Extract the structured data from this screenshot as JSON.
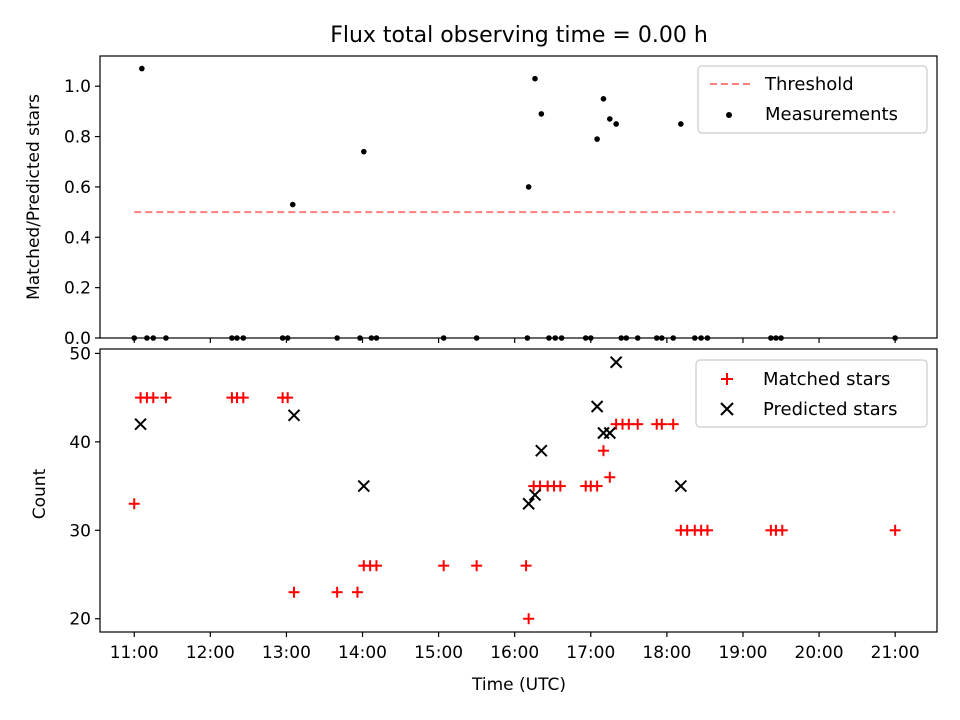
{
  "chart_data": [
    {
      "type": "scatter",
      "title": "Flux total observing time = 0.00 h",
      "ylabel": "Matched/Predicted stars",
      "xlim": [
        "10:33",
        "21:33"
      ],
      "ylim": [
        0,
        1.12
      ],
      "y_ticks": [
        "0.0",
        "0.2",
        "0.4",
        "0.6",
        "0.8",
        "1.0"
      ],
      "y_tick_values": [
        0,
        0.2,
        0.4,
        0.6,
        0.8,
        1.0
      ],
      "legend": {
        "placement": "top-right",
        "entries": [
          "Threshold",
          "Measurements"
        ]
      },
      "threshold": {
        "name": "Threshold",
        "value": 0.5,
        "x_range": [
          "11:00",
          "21:00"
        ],
        "color": "#ff7f7f"
      },
      "series": [
        {
          "name": "Measurements",
          "color": "#000000",
          "points": [
            {
              "x": "11:00",
              "y": 0
            },
            {
              "x": "11:06",
              "y": 1.07
            },
            {
              "x": "11:10",
              "y": 0
            },
            {
              "x": "11:15",
              "y": 0
            },
            {
              "x": "11:25",
              "y": 0
            },
            {
              "x": "12:17",
              "y": 0
            },
            {
              "x": "12:21",
              "y": 0
            },
            {
              "x": "12:26",
              "y": 0
            },
            {
              "x": "12:57",
              "y": 0
            },
            {
              "x": "13:01",
              "y": 0
            },
            {
              "x": "13:05",
              "y": 0.53
            },
            {
              "x": "13:40",
              "y": 0
            },
            {
              "x": "13:58",
              "y": 0
            },
            {
              "x": "14:01",
              "y": 0.74
            },
            {
              "x": "14:07",
              "y": 0
            },
            {
              "x": "14:11",
              "y": 0
            },
            {
              "x": "15:04",
              "y": 0
            },
            {
              "x": "15:30",
              "y": 0
            },
            {
              "x": "16:10",
              "y": 0
            },
            {
              "x": "16:11",
              "y": 0.6
            },
            {
              "x": "16:16",
              "y": 1.03
            },
            {
              "x": "16:21",
              "y": 0.89
            },
            {
              "x": "16:27",
              "y": 0
            },
            {
              "x": "16:32",
              "y": 0
            },
            {
              "x": "16:37",
              "y": 0
            },
            {
              "x": "16:56",
              "y": 0
            },
            {
              "x": "17:00",
              "y": 0
            },
            {
              "x": "17:05",
              "y": 0.79
            },
            {
              "x": "17:10",
              "y": 0.95
            },
            {
              "x": "17:15",
              "y": 0.87
            },
            {
              "x": "17:20",
              "y": 0.85
            },
            {
              "x": "17:24",
              "y": 0
            },
            {
              "x": "17:28",
              "y": 0
            },
            {
              "x": "17:37",
              "y": 0
            },
            {
              "x": "17:52",
              "y": 0
            },
            {
              "x": "17:56",
              "y": 0
            },
            {
              "x": "18:05",
              "y": 0
            },
            {
              "x": "18:11",
              "y": 0.85
            },
            {
              "x": "18:22",
              "y": 0
            },
            {
              "x": "18:27",
              "y": 0
            },
            {
              "x": "18:32",
              "y": 0
            },
            {
              "x": "19:22",
              "y": 0
            },
            {
              "x": "19:26",
              "y": 0
            },
            {
              "x": "19:30",
              "y": 0
            },
            {
              "x": "21:00",
              "y": 0
            }
          ]
        }
      ]
    },
    {
      "type": "scatter",
      "ylabel": "Count",
      "xlabel": "Time (UTC)",
      "xlim": [
        "10:33",
        "21:33"
      ],
      "ylim": [
        18.5,
        50.5
      ],
      "y_ticks": [
        "20",
        "30",
        "40",
        "50"
      ],
      "y_tick_values": [
        20,
        30,
        40,
        50
      ],
      "x_ticks": [
        "11:00",
        "12:00",
        "13:00",
        "14:00",
        "15:00",
        "16:00",
        "17:00",
        "18:00",
        "19:00",
        "20:00",
        "21:00"
      ],
      "legend": {
        "placement": "top-right",
        "entries": [
          "Matched stars",
          "Predicted stars"
        ]
      },
      "series": [
        {
          "name": "Matched stars",
          "marker": "plus",
          "color": "#ff0000",
          "points": [
            {
              "x": "11:00",
              "y": 33
            },
            {
              "x": "11:05",
              "y": 45
            },
            {
              "x": "11:10",
              "y": 45
            },
            {
              "x": "11:15",
              "y": 45
            },
            {
              "x": "11:25",
              "y": 45
            },
            {
              "x": "12:17",
              "y": 45
            },
            {
              "x": "12:21",
              "y": 45
            },
            {
              "x": "12:26",
              "y": 45
            },
            {
              "x": "12:57",
              "y": 45
            },
            {
              "x": "13:01",
              "y": 45
            },
            {
              "x": "13:06",
              "y": 23
            },
            {
              "x": "13:40",
              "y": 23
            },
            {
              "x": "13:56",
              "y": 23
            },
            {
              "x": "14:01",
              "y": 26
            },
            {
              "x": "14:06",
              "y": 26
            },
            {
              "x": "14:11",
              "y": 26
            },
            {
              "x": "15:04",
              "y": 26
            },
            {
              "x": "15:30",
              "y": 26
            },
            {
              "x": "16:09",
              "y": 26
            },
            {
              "x": "16:11",
              "y": 20
            },
            {
              "x": "16:15",
              "y": 35
            },
            {
              "x": "16:20",
              "y": 35
            },
            {
              "x": "16:26",
              "y": 35
            },
            {
              "x": "16:31",
              "y": 35
            },
            {
              "x": "16:36",
              "y": 35
            },
            {
              "x": "16:56",
              "y": 35
            },
            {
              "x": "17:00",
              "y": 35
            },
            {
              "x": "17:05",
              "y": 35
            },
            {
              "x": "17:10",
              "y": 39
            },
            {
              "x": "17:15",
              "y": 36
            },
            {
              "x": "17:20",
              "y": 42
            },
            {
              "x": "17:25",
              "y": 42
            },
            {
              "x": "17:30",
              "y": 42
            },
            {
              "x": "17:37",
              "y": 42
            },
            {
              "x": "17:52",
              "y": 42
            },
            {
              "x": "17:56",
              "y": 42
            },
            {
              "x": "18:05",
              "y": 42
            },
            {
              "x": "18:11",
              "y": 30
            },
            {
              "x": "18:16",
              "y": 30
            },
            {
              "x": "18:22",
              "y": 30
            },
            {
              "x": "18:27",
              "y": 30
            },
            {
              "x": "18:32",
              "y": 30
            },
            {
              "x": "19:22",
              "y": 30
            },
            {
              "x": "19:26",
              "y": 30
            },
            {
              "x": "19:31",
              "y": 30
            },
            {
              "x": "21:00",
              "y": 30
            }
          ]
        },
        {
          "name": "Predicted stars",
          "marker": "x",
          "color": "#000000",
          "points": [
            {
              "x": "11:05",
              "y": 42
            },
            {
              "x": "13:06",
              "y": 43
            },
            {
              "x": "14:01",
              "y": 35
            },
            {
              "x": "16:11",
              "y": 33
            },
            {
              "x": "16:16",
              "y": 34
            },
            {
              "x": "16:21",
              "y": 39
            },
            {
              "x": "17:05",
              "y": 44
            },
            {
              "x": "17:10",
              "y": 41
            },
            {
              "x": "17:15",
              "y": 41
            },
            {
              "x": "17:20",
              "y": 49
            },
            {
              "x": "18:11",
              "y": 35
            }
          ]
        }
      ]
    }
  ]
}
